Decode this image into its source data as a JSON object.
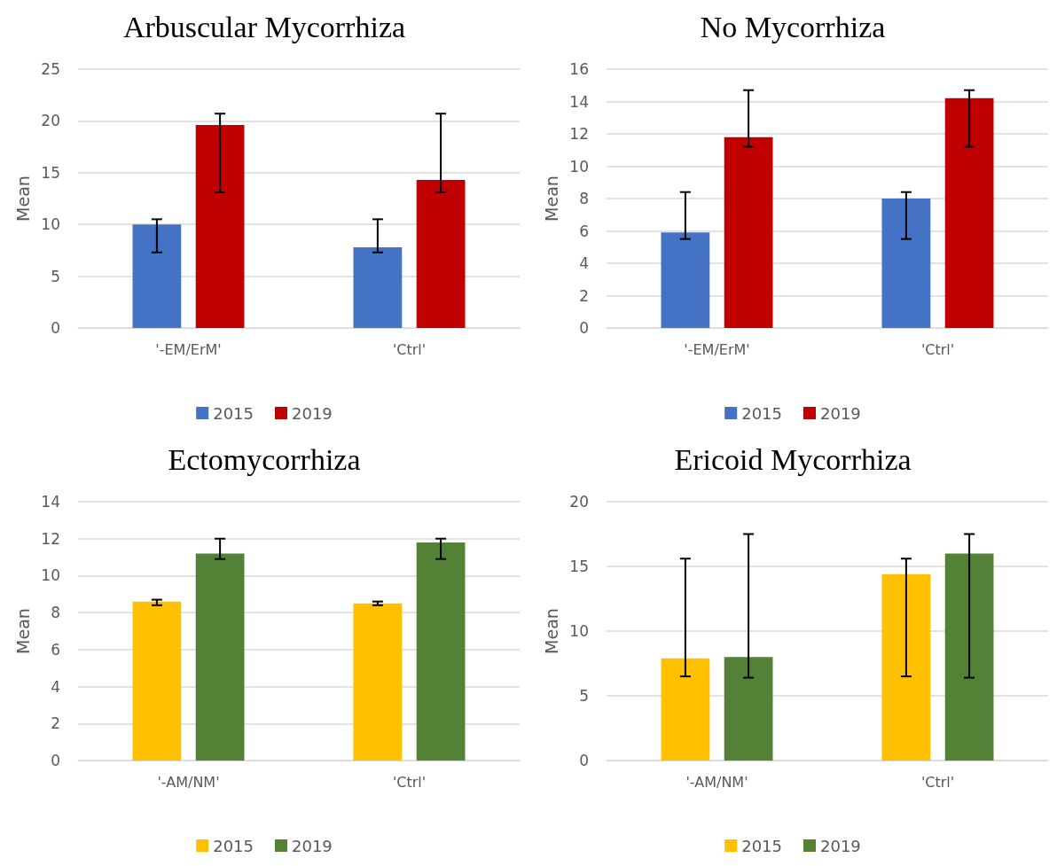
{
  "chart_data": [
    {
      "type": "bar",
      "title": "Arbuscular Mycorrhiza",
      "ylabel": "Mean",
      "categories": [
        "'-EM/ErM'",
        "'Ctrl'"
      ],
      "series": [
        {
          "name": "2015",
          "color": "#4472c4",
          "values": [
            10.0,
            7.8
          ],
          "errors": [
            [
              7.3,
              10.5
            ],
            [
              7.3,
              10.5
            ]
          ]
        },
        {
          "name": "2019",
          "color": "#c00000",
          "values": [
            19.6,
            14.3
          ],
          "errors": [
            [
              13.1,
              20.7
            ],
            [
              13.1,
              20.7
            ]
          ]
        }
      ],
      "ylim": [
        0,
        25
      ],
      "yticks": [
        0,
        5,
        10,
        15,
        20,
        25
      ],
      "grid": "y",
      "legend": "bottom"
    },
    {
      "type": "bar",
      "title": "No Mycorrhiza",
      "ylabel": "Mean",
      "categories": [
        "'-EM/ErM'",
        "'Ctrl'"
      ],
      "series": [
        {
          "name": "2015",
          "color": "#4472c4",
          "values": [
            5.9,
            8.0
          ],
          "errors": [
            [
              5.5,
              8.4
            ],
            [
              5.5,
              8.4
            ]
          ]
        },
        {
          "name": "2019",
          "color": "#c00000",
          "values": [
            11.8,
            14.2
          ],
          "errors": [
            [
              11.2,
              14.7
            ],
            [
              11.2,
              14.7
            ]
          ]
        }
      ],
      "ylim": [
        0,
        16
      ],
      "yticks": [
        0,
        2,
        4,
        6,
        8,
        10,
        12,
        14,
        16
      ],
      "grid": "y",
      "legend": "bottom"
    },
    {
      "type": "bar",
      "title": "Ectomycorrhiza",
      "ylabel": "Mean",
      "categories": [
        "'-AM/NM'",
        "'Ctrl'"
      ],
      "series": [
        {
          "name": "2015",
          "color": "#ffc000",
          "values": [
            8.6,
            8.5
          ],
          "errors": [
            [
              8.4,
              8.7
            ],
            [
              8.4,
              8.6
            ]
          ]
        },
        {
          "name": "2019",
          "color": "#538135",
          "values": [
            11.2,
            11.8
          ],
          "errors": [
            [
              10.9,
              12.0
            ],
            [
              10.9,
              12.0
            ]
          ]
        }
      ],
      "ylim": [
        0,
        14
      ],
      "yticks": [
        0,
        2,
        4,
        6,
        8,
        10,
        12,
        14
      ],
      "grid": "y",
      "legend": "bottom"
    },
    {
      "type": "bar",
      "title": "Ericoid Mycorrhiza",
      "ylabel": "Mean",
      "categories": [
        "'-AM/NM'",
        "'Ctrl'"
      ],
      "series": [
        {
          "name": "2015",
          "color": "#ffc000",
          "values": [
            7.9,
            14.4
          ],
          "errors": [
            [
              6.5,
              15.6
            ],
            [
              6.5,
              15.6
            ]
          ]
        },
        {
          "name": "2019",
          "color": "#538135",
          "values": [
            8.0,
            16.0
          ],
          "errors": [
            [
              6.4,
              17.5
            ],
            [
              6.4,
              17.5
            ]
          ]
        }
      ],
      "ylim": [
        0,
        20
      ],
      "yticks": [
        0,
        5,
        10,
        15,
        20
      ],
      "grid": "y",
      "legend": "bottom"
    }
  ]
}
